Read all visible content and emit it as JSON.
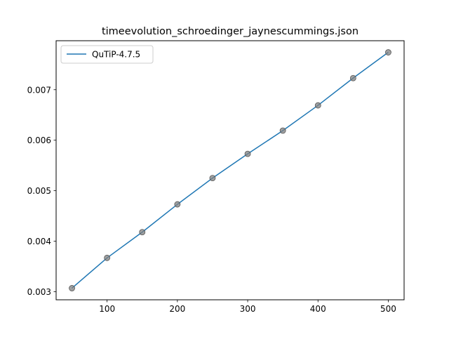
{
  "chart_data": {
    "type": "line",
    "title": "timeevolution_schroedinger_jaynescummings.json",
    "xlabel": "",
    "ylabel": "",
    "x": [
      50,
      100,
      150,
      200,
      250,
      300,
      350,
      400,
      450,
      500
    ],
    "series": [
      {
        "name": "QuTiP-4.7.5",
        "values": [
          0.00307,
          0.00367,
          0.00418,
          0.00473,
          0.00525,
          0.00573,
          0.00619,
          0.00669,
          0.00723,
          0.00774
        ],
        "color": "#1f77b4",
        "markers": true,
        "marker_color": "#808080"
      }
    ],
    "xticks": [
      "100",
      "200",
      "300",
      "400",
      "500"
    ],
    "yticks": [
      "0.003",
      "0.004",
      "0.005",
      "0.006",
      "0.007"
    ],
    "xlim": [
      27.5,
      522.5
    ],
    "ylim": [
      0.00284,
      0.00797
    ],
    "grid": false,
    "legend": "top-left"
  }
}
